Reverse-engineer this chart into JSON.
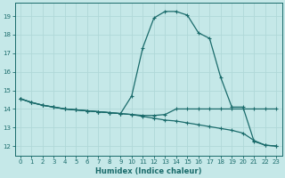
{
  "xlabel": "Humidex (Indice chaleur)",
  "bg_color": "#c5e8e8",
  "grid_color": "#b0d8d8",
  "line_color": "#1a6b6b",
  "xlim": [
    -0.5,
    23.5
  ],
  "ylim": [
    11.5,
    19.7
  ],
  "xticks": [
    0,
    1,
    2,
    3,
    4,
    5,
    6,
    7,
    8,
    9,
    10,
    11,
    12,
    13,
    14,
    15,
    16,
    17,
    18,
    19,
    20,
    21,
    22,
    23
  ],
  "yticks": [
    12,
    13,
    14,
    15,
    16,
    17,
    18,
    19
  ],
  "curve_spike_x": [
    0,
    1,
    2,
    3,
    4,
    5,
    6,
    7,
    8,
    9,
    10,
    11,
    12,
    13,
    14,
    15,
    16,
    17,
    18,
    19,
    20,
    21,
    22,
    23
  ],
  "curve_spike_y": [
    14.55,
    14.35,
    14.2,
    14.1,
    14.0,
    13.95,
    13.9,
    13.85,
    13.8,
    13.75,
    14.7,
    17.3,
    18.9,
    19.25,
    19.25,
    19.05,
    18.1,
    17.8,
    15.7,
    14.1,
    14.1,
    12.25,
    12.05,
    12.0
  ],
  "curve_flat_x": [
    0,
    1,
    2,
    3,
    4,
    5,
    6,
    7,
    8,
    9,
    10,
    11,
    12,
    13,
    14,
    15,
    16,
    17,
    18,
    19,
    20,
    21,
    22,
    23
  ],
  "curve_flat_y": [
    14.55,
    14.35,
    14.2,
    14.1,
    14.0,
    13.95,
    13.9,
    13.85,
    13.8,
    13.75,
    13.7,
    13.65,
    13.65,
    13.7,
    14.0,
    14.0,
    14.0,
    14.0,
    14.0,
    14.0,
    14.0,
    14.0,
    14.0,
    14.0
  ],
  "curve_decline_x": [
    0,
    1,
    2,
    3,
    4,
    5,
    6,
    7,
    8,
    9,
    10,
    11,
    12,
    13,
    14,
    15,
    16,
    17,
    18,
    19,
    20,
    21,
    22,
    23
  ],
  "curve_decline_y": [
    14.55,
    14.35,
    14.2,
    14.1,
    14.0,
    13.95,
    13.9,
    13.85,
    13.8,
    13.75,
    13.7,
    13.6,
    13.5,
    13.4,
    13.35,
    13.25,
    13.15,
    13.05,
    12.95,
    12.85,
    12.7,
    12.3,
    12.05,
    12.0
  ]
}
